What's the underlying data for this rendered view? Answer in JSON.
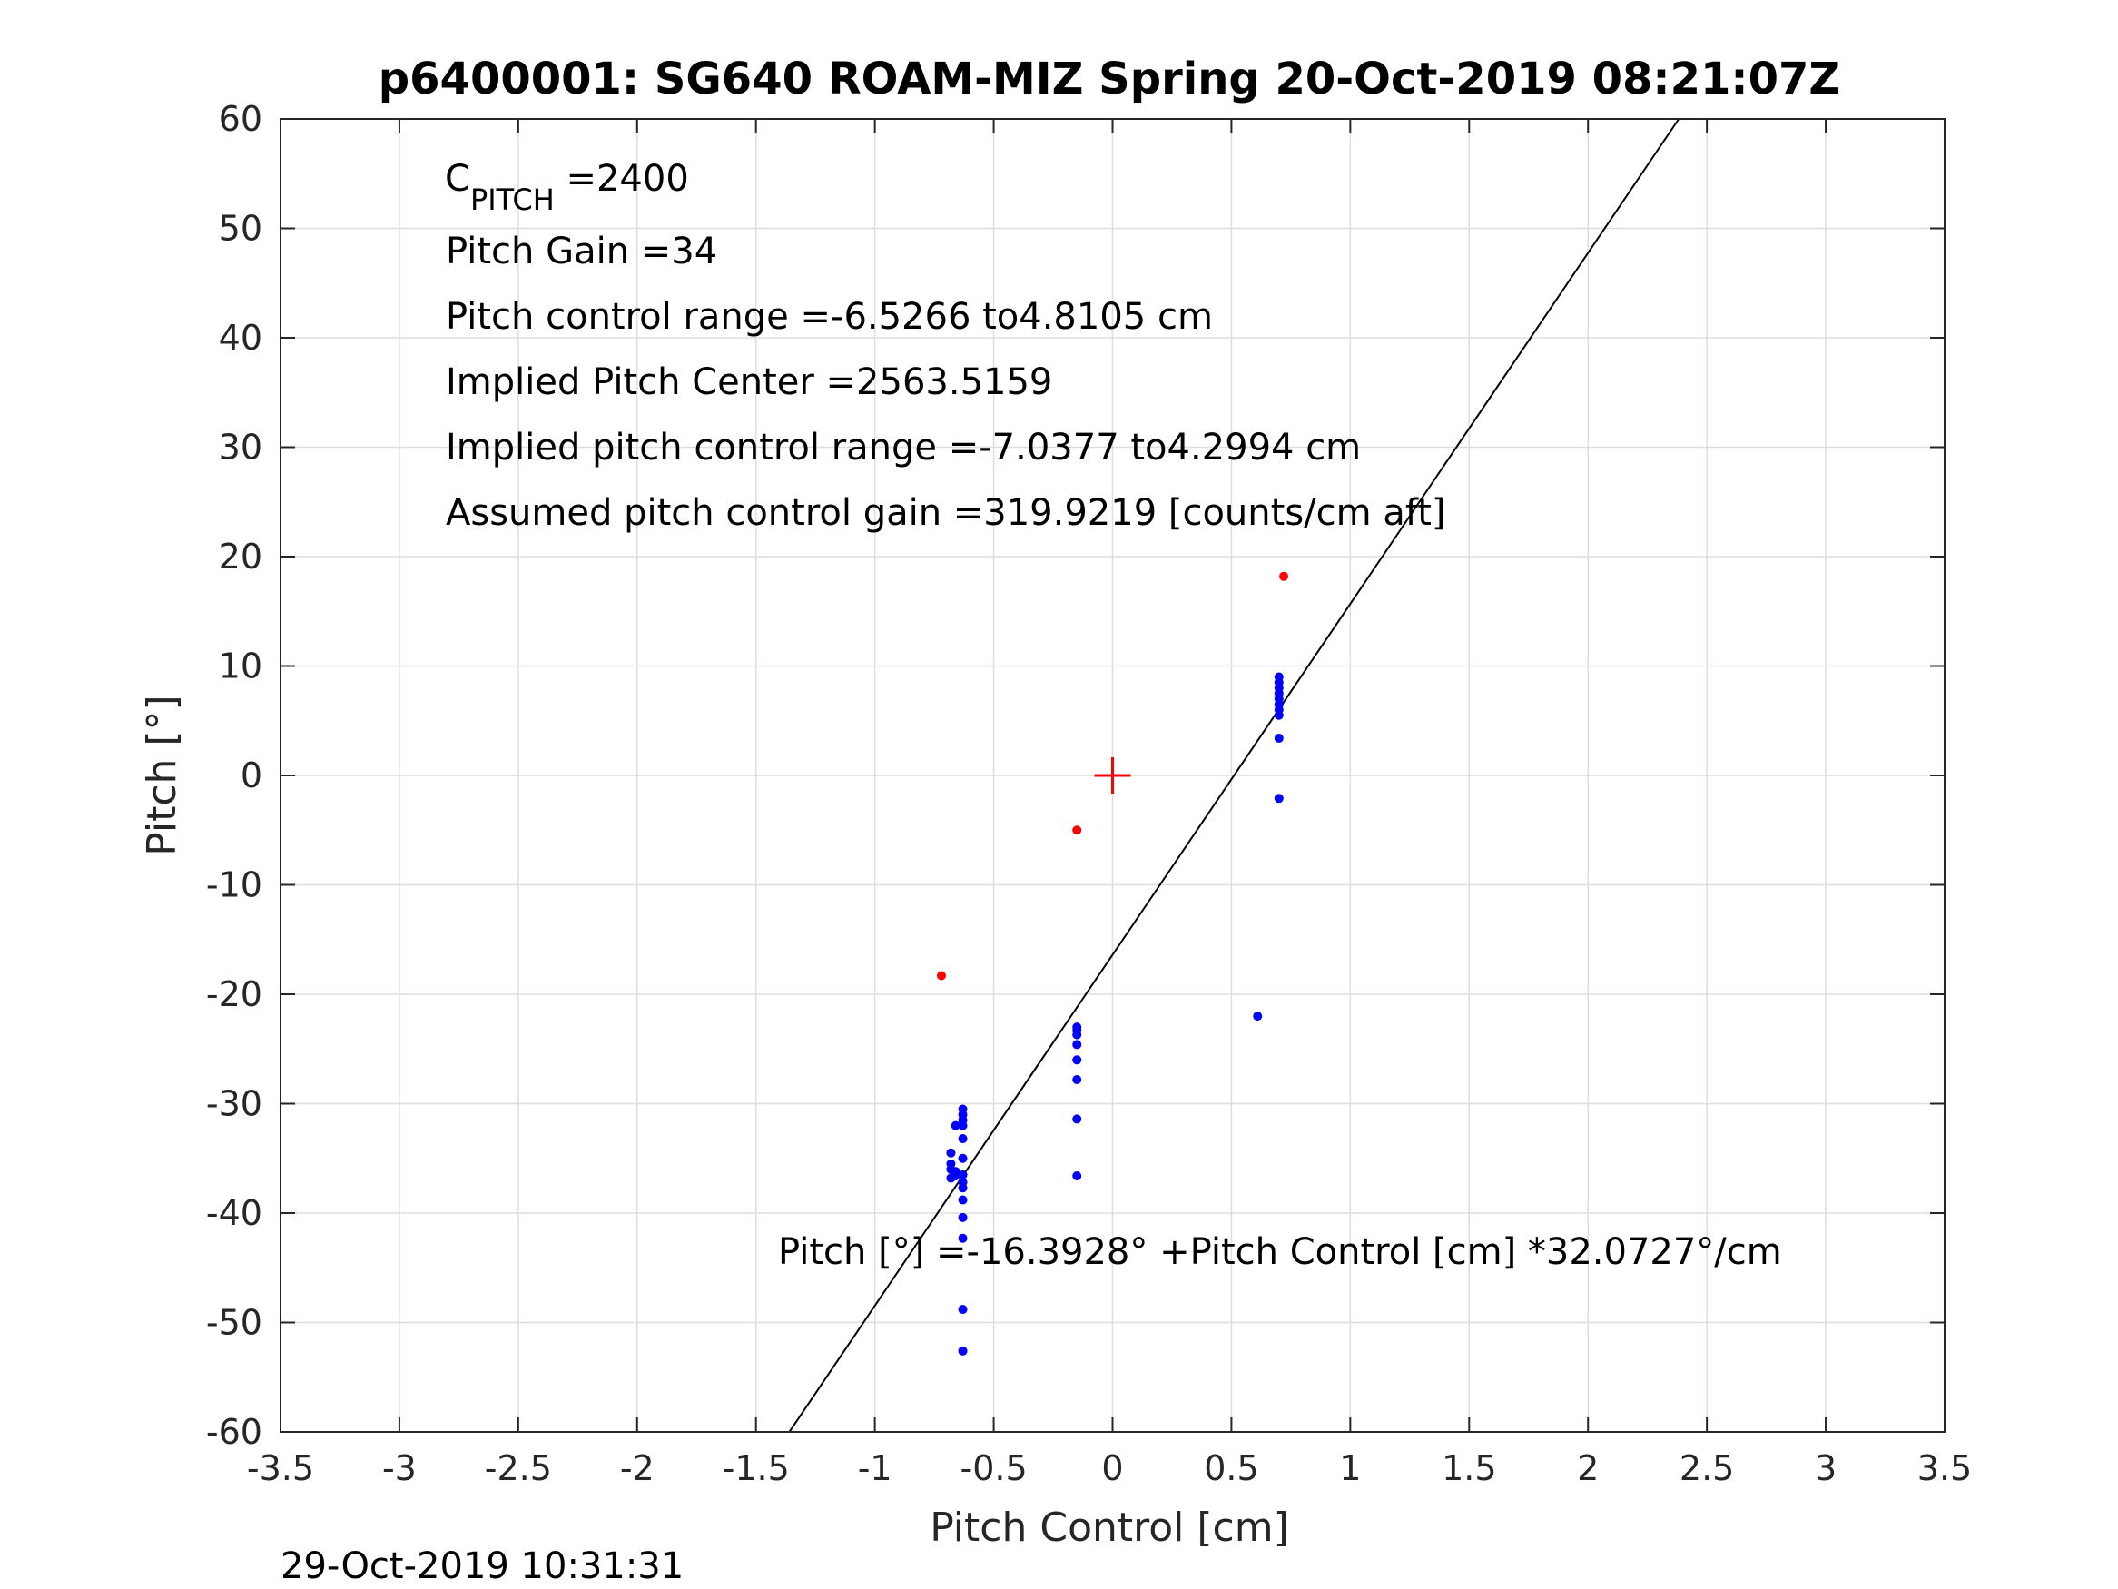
{
  "chart_data": {
    "type": "scatter",
    "title": "p6400001: SG640 ROAM-MIZ Spring 20-Oct-2019 08:21:07Z",
    "xlabel": "Pitch Control [cm]",
    "ylabel": "Pitch [°]",
    "xlim": [
      -3.5,
      3.5
    ],
    "ylim": [
      -60,
      60
    ],
    "x_ticks": [
      -3.5,
      -3,
      -2.5,
      -2,
      -1.5,
      -1,
      -0.5,
      0,
      0.5,
      1,
      1.5,
      2,
      2.5,
      3,
      3.5
    ],
    "x_tick_labels": [
      "-3.5",
      "-3",
      "-2.5",
      "-2",
      "-1.5",
      "-1",
      "-0.5",
      "0",
      "0.5",
      "1",
      "1.5",
      "2",
      "2.5",
      "3",
      "3.5"
    ],
    "y_ticks": [
      -60,
      -50,
      -40,
      -30,
      -20,
      -10,
      0,
      10,
      20,
      30,
      40,
      50,
      60
    ],
    "y_tick_labels": [
      "-60",
      "-50",
      "-40",
      "-30",
      "-20",
      "-10",
      "0",
      "10",
      "20",
      "30",
      "40",
      "50",
      "60"
    ],
    "grid": true,
    "colors": {
      "blue_points": "#0000ff",
      "red_points": "#ff0000",
      "fit_line": "#000000",
      "grid": "#dedede"
    },
    "series": [
      {
        "marker": "dot",
        "color": "#0000ff",
        "points": [
          [
            -0.63,
            -30.5
          ],
          [
            -0.63,
            -31.0
          ],
          [
            -0.63,
            -31.5
          ],
          [
            -0.63,
            -32.0
          ],
          [
            -0.66,
            -32.0
          ],
          [
            -0.63,
            -33.2
          ],
          [
            -0.68,
            -34.5
          ],
          [
            -0.63,
            -35.0
          ],
          [
            -0.68,
            -35.5
          ],
          [
            -0.68,
            -36.0
          ],
          [
            -0.66,
            -36.2
          ],
          [
            -0.63,
            -36.5
          ],
          [
            -0.68,
            -36.8
          ],
          [
            -0.66,
            -36.6
          ],
          [
            -0.63,
            -37.2
          ],
          [
            -0.63,
            -37.7
          ],
          [
            -0.63,
            -38.8
          ],
          [
            -0.63,
            -40.4
          ],
          [
            -0.63,
            -42.3
          ],
          [
            -0.63,
            -48.8
          ],
          [
            -0.63,
            -52.6
          ],
          [
            -0.15,
            -23.0
          ],
          [
            -0.15,
            -23.3
          ],
          [
            -0.15,
            -23.7
          ],
          [
            -0.15,
            -24.6
          ],
          [
            -0.15,
            -26.0
          ],
          [
            -0.15,
            -27.8
          ],
          [
            -0.15,
            -31.4
          ],
          [
            -0.15,
            -36.6
          ],
          [
            0.61,
            -22.0
          ],
          [
            0.7,
            9.0
          ],
          [
            0.7,
            8.5
          ],
          [
            0.7,
            8.0
          ],
          [
            0.7,
            7.5
          ],
          [
            0.7,
            7.0
          ],
          [
            0.7,
            6.5
          ],
          [
            0.7,
            6.0
          ],
          [
            0.7,
            5.5
          ],
          [
            0.7,
            3.4
          ],
          [
            0.7,
            -2.1
          ]
        ]
      },
      {
        "marker": "dot",
        "color": "#ff0000",
        "points": [
          [
            -0.72,
            -18.3
          ],
          [
            -0.15,
            -5.0
          ],
          [
            0.72,
            18.2
          ]
        ]
      },
      {
        "marker": "plus",
        "color": "#ff0000",
        "points": [
          [
            0,
            0
          ]
        ]
      }
    ],
    "fit_line": {
      "intercept": -16.3928,
      "slope": 32.0727,
      "color": "#000000"
    },
    "annotations": {
      "c_pitch_main": "C",
      "c_pitch_sub": "PITCH",
      "c_pitch_value": " =2400",
      "pitch_gain": "Pitch Gain =34",
      "pitch_control_range": "Pitch control range =-6.5266 to4.8105 cm",
      "implied_pitch_center": "Implied Pitch Center =2563.5159",
      "implied_pitch_control_range": "Implied pitch control range =-7.0377 to4.2994 cm",
      "assumed_pitch_control_gain": "Assumed pitch control gain =319.9219 [counts/cm aft]",
      "fit_equation": "Pitch [°] =-16.3928° +Pitch Control [cm] *32.0727°/cm"
    },
    "timestamp": "29-Oct-2019 10:31:31"
  }
}
